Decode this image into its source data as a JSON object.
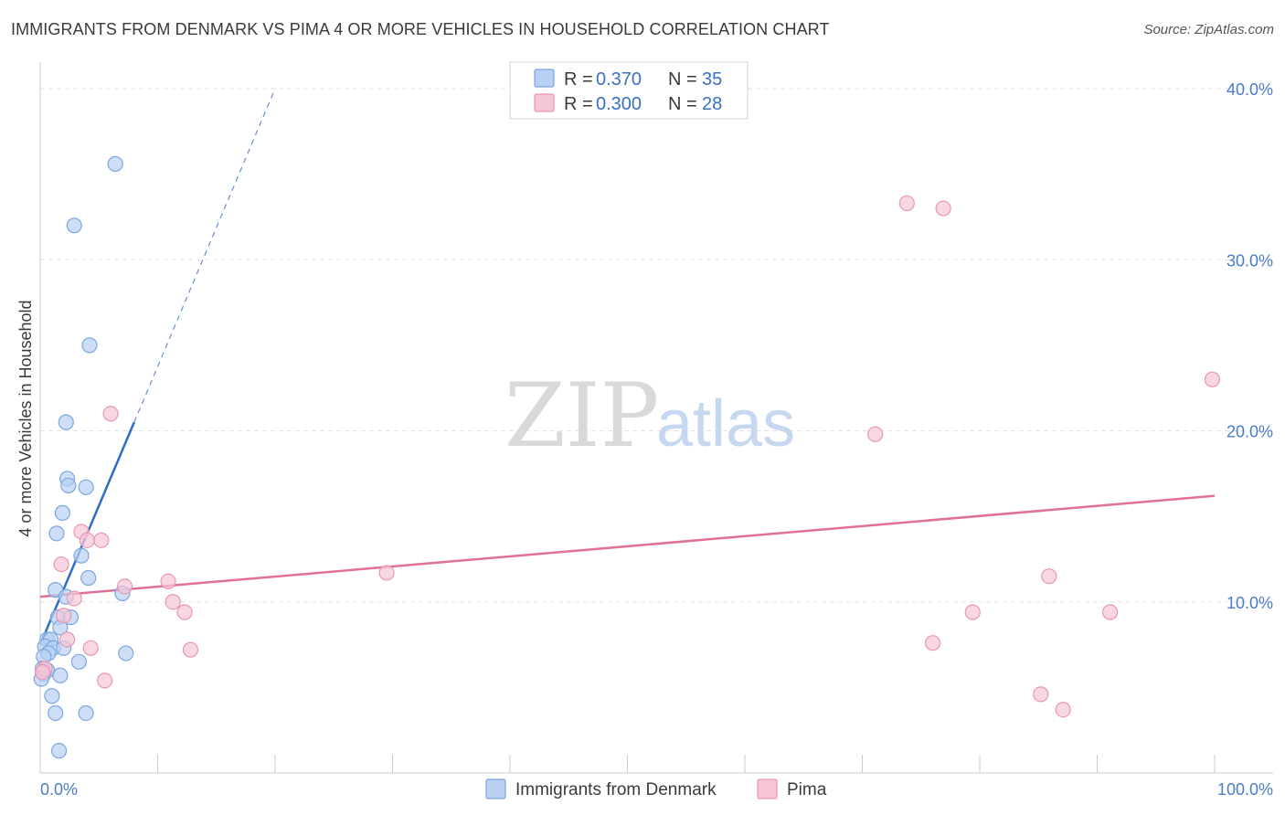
{
  "header": {
    "title": "IMMIGRANTS FROM DENMARK VS PIMA 4 OR MORE VEHICLES IN HOUSEHOLD CORRELATION CHART",
    "source": "Source: ZipAtlas.com"
  },
  "watermark": {
    "zip": "ZIP",
    "atlas": "atlas"
  },
  "colors": {
    "blue_fill": "#b8d0f2",
    "blue_stroke": "#7aa6e0",
    "blue_line": "#2f6cc9",
    "pink_fill": "#f7c6d6",
    "pink_stroke": "#e996b3",
    "pink_line": "#e0709a",
    "grid": "#e3e3e3",
    "axis": "#cccccc"
  },
  "chart_data": {
    "type": "scatter",
    "title": "IMMIGRANTS FROM DENMARK VS PIMA 4 OR MORE VEHICLES IN HOUSEHOLD CORRELATION CHART",
    "xlabel": "",
    "ylabel": "4 or more Vehicles in Household",
    "xlim": [
      0,
      100
    ],
    "ylim": [
      0,
      43
    ],
    "x_tick_labels": [
      "0.0%",
      "100.0%"
    ],
    "y_ticks": [
      10,
      20,
      30,
      40
    ],
    "y_tick_labels": [
      "10.0%",
      "20.0%",
      "30.0%",
      "40.0%"
    ],
    "grid": true,
    "legend_position": "top-center",
    "stats": [
      {
        "series": "Immigrants from Denmark",
        "r_label": "R =",
        "r_value": "0.370",
        "n_label": "N =",
        "n_value": "35"
      },
      {
        "series": "Pima",
        "r_label": "R =",
        "r_value": "0.300",
        "n_label": "N =",
        "n_value": "28"
      }
    ],
    "series": [
      {
        "name": "Immigrants from Denmark",
        "color": "blue",
        "points": [
          [
            6.4,
            35.6
          ],
          [
            2.9,
            32.0
          ],
          [
            4.2,
            25.0
          ],
          [
            2.2,
            20.5
          ],
          [
            2.3,
            17.2
          ],
          [
            2.4,
            16.8
          ],
          [
            3.9,
            16.7
          ],
          [
            1.9,
            15.2
          ],
          [
            1.4,
            14.0
          ],
          [
            3.5,
            12.7
          ],
          [
            4.1,
            11.4
          ],
          [
            1.3,
            10.7
          ],
          [
            2.2,
            10.3
          ],
          [
            7.0,
            10.5
          ],
          [
            1.5,
            9.1
          ],
          [
            2.6,
            9.1
          ],
          [
            1.7,
            8.5
          ],
          [
            0.6,
            7.8
          ],
          [
            0.9,
            7.8
          ],
          [
            0.4,
            7.4
          ],
          [
            1.1,
            7.3
          ],
          [
            2.0,
            7.3
          ],
          [
            0.7,
            7.0
          ],
          [
            0.3,
            6.8
          ],
          [
            7.3,
            7.0
          ],
          [
            3.3,
            6.5
          ],
          [
            0.2,
            6.1
          ],
          [
            0.6,
            6.0
          ],
          [
            0.3,
            5.8
          ],
          [
            1.7,
            5.7
          ],
          [
            0.1,
            5.5
          ],
          [
            1.0,
            4.5
          ],
          [
            1.3,
            3.5
          ],
          [
            3.9,
            3.5
          ],
          [
            1.6,
            1.3
          ]
        ],
        "trend": {
          "x_start": 0.0,
          "y_start": 7.5,
          "x_solid_end": 8.0,
          "y_solid_end": 20.5,
          "x_dash_end": 20.0,
          "y_dash_end": 40.0
        }
      },
      {
        "name": "Pima",
        "color": "pink",
        "points": [
          [
            6.0,
            21.0
          ],
          [
            3.5,
            14.1
          ],
          [
            4.0,
            13.6
          ],
          [
            5.2,
            13.6
          ],
          [
            1.8,
            12.2
          ],
          [
            10.9,
            11.2
          ],
          [
            7.2,
            10.9
          ],
          [
            2.0,
            9.2
          ],
          [
            2.9,
            10.2
          ],
          [
            11.3,
            10.0
          ],
          [
            12.3,
            9.4
          ],
          [
            2.3,
            7.8
          ],
          [
            4.3,
            7.3
          ],
          [
            12.8,
            7.2
          ],
          [
            5.5,
            5.4
          ],
          [
            0.4,
            6.1
          ],
          [
            29.5,
            11.7
          ],
          [
            73.8,
            33.3
          ],
          [
            76.9,
            33.0
          ],
          [
            99.8,
            23.0
          ],
          [
            71.1,
            19.8
          ],
          [
            76.0,
            7.6
          ],
          [
            79.4,
            9.4
          ],
          [
            85.2,
            4.6
          ],
          [
            85.9,
            11.5
          ],
          [
            87.1,
            3.7
          ],
          [
            91.1,
            9.4
          ],
          [
            0.2,
            5.9
          ]
        ],
        "trend": {
          "x_start": 0.0,
          "y_start": 10.3,
          "x_end": 100.0,
          "y_end": 16.2
        }
      }
    ]
  },
  "bottom_legend": [
    {
      "label": "Immigrants from Denmark"
    },
    {
      "label": "Pima"
    }
  ]
}
